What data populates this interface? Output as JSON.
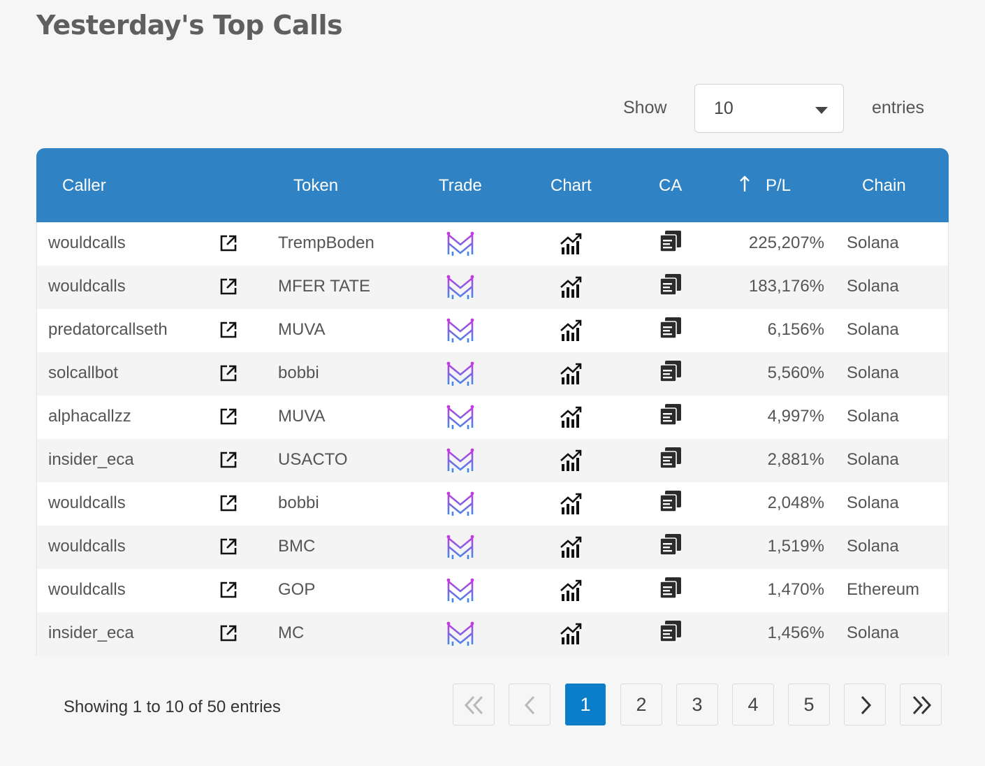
{
  "title": "Yesterday's Top Calls",
  "length_control": {
    "show_label": "Show",
    "selected": "10",
    "entries_label": "entries"
  },
  "table": {
    "headers": {
      "caller": "Caller",
      "token": "Token",
      "trade": "Trade",
      "chart": "Chart",
      "ca": "CA",
      "pl": "P/L",
      "chain": "Chain"
    },
    "sort_column": "P/L",
    "rows": [
      {
        "caller": "wouldcalls",
        "token": "TrempBoden",
        "pl": "225,207%",
        "chain": "Solana"
      },
      {
        "caller": "wouldcalls",
        "token": "MFER TATE",
        "pl": "183,176%",
        "chain": "Solana"
      },
      {
        "caller": "predatorcallseth",
        "token": "MUVA",
        "pl": "6,156%",
        "chain": "Solana"
      },
      {
        "caller": "solcallbot",
        "token": "bobbi",
        "pl": "5,560%",
        "chain": "Solana"
      },
      {
        "caller": "alphacallzz",
        "token": "MUVA",
        "pl": "4,997%",
        "chain": "Solana"
      },
      {
        "caller": "insider_eca",
        "token": "USACTO",
        "pl": "2,881%",
        "chain": "Solana"
      },
      {
        "caller": "wouldcalls",
        "token": "bobbi",
        "pl": "2,048%",
        "chain": "Solana"
      },
      {
        "caller": "wouldcalls",
        "token": "BMC",
        "pl": "1,519%",
        "chain": "Solana"
      },
      {
        "caller": "wouldcalls",
        "token": "GOP",
        "pl": "1,470%",
        "chain": "Ethereum"
      },
      {
        "caller": "insider_eca",
        "token": "MC",
        "pl": "1,456%",
        "chain": "Solana"
      }
    ],
    "icons": {
      "caller_link": "external-link-icon",
      "trade": "trade-logo-icon",
      "chart": "chart-icon",
      "ca": "copy-icon"
    }
  },
  "info": "Showing 1 to 10 of 50 entries",
  "pagination": {
    "first": "first-page-icon",
    "previous": "previous-page-icon",
    "pages": [
      "1",
      "2",
      "3",
      "4",
      "5"
    ],
    "current": "1",
    "next": "next-page-icon",
    "last": "last-page-icon"
  },
  "colors": {
    "header": "#2f82c3",
    "active_page": "#0a7ec8",
    "trade_logo_top": "#c23be0",
    "trade_logo_bottom": "#3a8fe8"
  }
}
